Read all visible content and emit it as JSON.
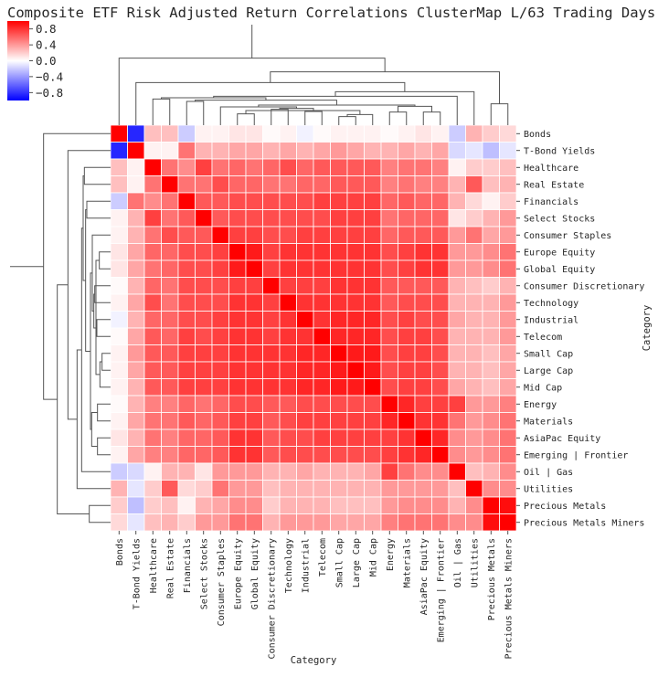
{
  "chart_data": {
    "type": "heatmap",
    "title": "Composite ETF Risk Adjusted Return Correlations ClusterMap L/63 Trading Days",
    "xlabel": "Category",
    "ylabel": "Category",
    "categories": [
      "Bonds",
      "T-Bond Yields",
      "Healthcare",
      "Real Estate",
      "Financials",
      "Select Stocks",
      "Consumer Staples",
      "Europe Equity",
      "Global Equity",
      "Consumer Discretionary",
      "Technology",
      "Industrial",
      "Telecom",
      "Small Cap",
      "Large Cap",
      "Mid Cap",
      "Energy",
      "Materials",
      "AsiaPac Equity",
      "Emerging | Frontier",
      "Oil | Gas",
      "Utilities",
      "Precious Metals",
      "Precious Metals Miners"
    ],
    "colorbar": {
      "range": [
        -1.0,
        1.0
      ],
      "ticks": [
        -0.8,
        -0.4,
        0.0,
        0.4,
        0.8
      ],
      "tick_labels": [
        "−0.8",
        "−0.4",
        "0.0",
        "0.4",
        "0.8"
      ],
      "colormap": "bwr"
    },
    "colors": {
      "negative": "#0000ff",
      "zero": "#ffffff",
      "positive": "#ff0000",
      "dendrogram": "#555555",
      "grid": "#ffffff"
    },
    "values": [
      [
        1.0,
        -0.85,
        0.25,
        0.25,
        -0.2,
        0.05,
        0.05,
        0.1,
        0.1,
        0.02,
        0.05,
        -0.05,
        0.02,
        0.05,
        0.05,
        0.05,
        0.02,
        0.05,
        0.1,
        0.05,
        -0.2,
        0.3,
        0.2,
        0.15
      ],
      [
        -0.85,
        1.0,
        0.05,
        0.05,
        0.55,
        0.3,
        0.3,
        0.35,
        0.35,
        0.3,
        0.35,
        0.3,
        0.35,
        0.4,
        0.35,
        0.3,
        0.3,
        0.35,
        0.3,
        0.35,
        -0.15,
        -0.1,
        -0.25,
        -0.1
      ],
      [
        0.25,
        0.05,
        1.0,
        0.55,
        0.45,
        0.75,
        0.55,
        0.6,
        0.55,
        0.6,
        0.7,
        0.6,
        0.65,
        0.65,
        0.65,
        0.65,
        0.5,
        0.55,
        0.55,
        0.5,
        0.05,
        0.2,
        0.2,
        0.25
      ],
      [
        0.25,
        0.05,
        0.55,
        1.0,
        0.55,
        0.55,
        0.7,
        0.6,
        0.6,
        0.55,
        0.55,
        0.6,
        0.6,
        0.65,
        0.65,
        0.65,
        0.5,
        0.55,
        0.5,
        0.5,
        0.3,
        0.65,
        0.25,
        0.3
      ],
      [
        -0.2,
        0.55,
        0.45,
        0.55,
        1.0,
        0.65,
        0.65,
        0.7,
        0.7,
        0.7,
        0.7,
        0.7,
        0.75,
        0.75,
        0.75,
        0.75,
        0.6,
        0.65,
        0.6,
        0.6,
        0.3,
        0.15,
        0.05,
        0.2
      ],
      [
        0.05,
        0.3,
        0.75,
        0.55,
        0.65,
        1.0,
        0.65,
        0.7,
        0.7,
        0.7,
        0.7,
        0.7,
        0.7,
        0.75,
        0.75,
        0.75,
        0.55,
        0.6,
        0.6,
        0.6,
        0.1,
        0.2,
        0.3,
        0.4
      ],
      [
        0.05,
        0.3,
        0.55,
        0.7,
        0.65,
        0.65,
        1.0,
        0.75,
        0.75,
        0.7,
        0.7,
        0.75,
        0.75,
        0.75,
        0.75,
        0.75,
        0.6,
        0.65,
        0.65,
        0.65,
        0.4,
        0.55,
        0.35,
        0.4
      ],
      [
        0.1,
        0.35,
        0.6,
        0.6,
        0.7,
        0.7,
        0.75,
        1.0,
        0.9,
        0.75,
        0.8,
        0.8,
        0.8,
        0.8,
        0.8,
        0.8,
        0.7,
        0.75,
        0.8,
        0.8,
        0.4,
        0.4,
        0.45,
        0.55
      ],
      [
        0.1,
        0.35,
        0.55,
        0.6,
        0.7,
        0.7,
        0.75,
        0.9,
        1.0,
        0.75,
        0.8,
        0.8,
        0.8,
        0.8,
        0.8,
        0.8,
        0.7,
        0.75,
        0.8,
        0.8,
        0.4,
        0.4,
        0.45,
        0.55
      ],
      [
        0.02,
        0.3,
        0.6,
        0.55,
        0.7,
        0.7,
        0.7,
        0.75,
        0.75,
        1.0,
        0.75,
        0.75,
        0.75,
        0.8,
        0.8,
        0.8,
        0.65,
        0.65,
        0.65,
        0.65,
        0.3,
        0.25,
        0.2,
        0.3
      ],
      [
        0.05,
        0.35,
        0.7,
        0.55,
        0.7,
        0.7,
        0.7,
        0.8,
        0.8,
        0.75,
        1.0,
        0.8,
        0.8,
        0.8,
        0.8,
        0.8,
        0.65,
        0.7,
        0.7,
        0.7,
        0.3,
        0.3,
        0.3,
        0.4
      ],
      [
        -0.05,
        0.3,
        0.6,
        0.6,
        0.7,
        0.7,
        0.75,
        0.8,
        0.8,
        0.75,
        0.8,
        1.0,
        0.8,
        0.85,
        0.85,
        0.85,
        0.7,
        0.75,
        0.7,
        0.7,
        0.35,
        0.3,
        0.3,
        0.4
      ],
      [
        0.02,
        0.35,
        0.65,
        0.6,
        0.75,
        0.7,
        0.75,
        0.8,
        0.8,
        0.75,
        0.8,
        0.8,
        1.0,
        0.85,
        0.85,
        0.85,
        0.7,
        0.75,
        0.75,
        0.7,
        0.3,
        0.3,
        0.3,
        0.4
      ],
      [
        0.05,
        0.4,
        0.65,
        0.65,
        0.75,
        0.75,
        0.75,
        0.8,
        0.8,
        0.8,
        0.8,
        0.85,
        0.85,
        1.0,
        0.9,
        0.9,
        0.7,
        0.75,
        0.75,
        0.7,
        0.3,
        0.3,
        0.25,
        0.35
      ],
      [
        0.05,
        0.35,
        0.65,
        0.65,
        0.75,
        0.75,
        0.75,
        0.8,
        0.8,
        0.8,
        0.8,
        0.85,
        0.85,
        0.9,
        1.0,
        0.9,
        0.7,
        0.75,
        0.75,
        0.7,
        0.3,
        0.3,
        0.25,
        0.35
      ],
      [
        0.05,
        0.3,
        0.65,
        0.65,
        0.75,
        0.75,
        0.75,
        0.8,
        0.8,
        0.8,
        0.8,
        0.85,
        0.85,
        0.9,
        0.9,
        1.0,
        0.7,
        0.75,
        0.75,
        0.7,
        0.35,
        0.3,
        0.25,
        0.35
      ],
      [
        0.02,
        0.3,
        0.5,
        0.5,
        0.6,
        0.55,
        0.6,
        0.7,
        0.7,
        0.65,
        0.65,
        0.7,
        0.7,
        0.7,
        0.7,
        0.7,
        1.0,
        0.85,
        0.75,
        0.75,
        0.75,
        0.4,
        0.4,
        0.5
      ],
      [
        0.05,
        0.35,
        0.55,
        0.55,
        0.65,
        0.6,
        0.65,
        0.75,
        0.75,
        0.65,
        0.7,
        0.75,
        0.75,
        0.75,
        0.75,
        0.75,
        0.85,
        1.0,
        0.8,
        0.8,
        0.55,
        0.4,
        0.45,
        0.55
      ],
      [
        0.1,
        0.3,
        0.55,
        0.5,
        0.6,
        0.6,
        0.65,
        0.8,
        0.8,
        0.65,
        0.7,
        0.7,
        0.75,
        0.75,
        0.75,
        0.75,
        0.75,
        0.8,
        1.0,
        0.85,
        0.45,
        0.4,
        0.45,
        0.55
      ],
      [
        0.05,
        0.35,
        0.5,
        0.5,
        0.6,
        0.6,
        0.65,
        0.8,
        0.8,
        0.65,
        0.7,
        0.7,
        0.7,
        0.7,
        0.7,
        0.7,
        0.75,
        0.8,
        0.85,
        1.0,
        0.45,
        0.4,
        0.45,
        0.55
      ],
      [
        -0.2,
        -0.15,
        0.05,
        0.3,
        0.3,
        0.1,
        0.4,
        0.4,
        0.4,
        0.3,
        0.3,
        0.35,
        0.3,
        0.3,
        0.3,
        0.35,
        0.75,
        0.55,
        0.45,
        0.45,
        1.0,
        0.25,
        0.3,
        0.45
      ],
      [
        0.3,
        -0.1,
        0.2,
        0.65,
        0.15,
        0.2,
        0.55,
        0.4,
        0.4,
        0.25,
        0.3,
        0.3,
        0.3,
        0.3,
        0.3,
        0.3,
        0.4,
        0.4,
        0.4,
        0.4,
        0.25,
        1.0,
        0.45,
        0.45
      ],
      [
        0.2,
        -0.25,
        0.2,
        0.25,
        0.05,
        0.3,
        0.35,
        0.45,
        0.45,
        0.2,
        0.3,
        0.3,
        0.3,
        0.25,
        0.25,
        0.25,
        0.4,
        0.45,
        0.45,
        0.45,
        0.3,
        0.45,
        1.0,
        0.95
      ],
      [
        0.15,
        -0.1,
        0.25,
        0.3,
        0.2,
        0.4,
        0.4,
        0.55,
        0.55,
        0.3,
        0.4,
        0.4,
        0.4,
        0.35,
        0.35,
        0.35,
        0.5,
        0.55,
        0.55,
        0.55,
        0.45,
        0.45,
        0.95,
        1.0
      ]
    ],
    "dendrogram": {
      "leaf_order": [
        "Bonds",
        "T-Bond Yields",
        "Healthcare",
        "Real Estate",
        "Financials",
        "Select Stocks",
        "Consumer Staples",
        "Europe Equity",
        "Global Equity",
        "Consumer Discretionary",
        "Technology",
        "Industrial",
        "Telecom",
        "Small Cap",
        "Large Cap",
        "Mid Cap",
        "Energy",
        "Materials",
        "AsiaPac Equity",
        "Emerging | Frontier",
        "Oil | Gas",
        "Utilities",
        "Precious Metals",
        "Precious Metals Miners"
      ],
      "merges": [
        [
          13,
          14,
          0.28
        ],
        [
          24,
          15,
          0.35
        ],
        [
          7,
          8,
          0.37
        ],
        [
          16,
          17,
          0.43
        ],
        [
          18,
          19,
          0.43
        ],
        [
          11,
          12,
          0.45
        ],
        [
          26,
          25,
          0.48
        ],
        [
          9,
          10,
          0.52
        ],
        [
          31,
          29,
          0.55
        ],
        [
          32,
          6,
          0.6
        ],
        [
          27,
          28,
          0.62
        ],
        [
          33,
          34,
          0.66
        ],
        [
          22,
          23,
          0.7
        ],
        [
          4,
          5,
          0.78
        ],
        [
          35,
          37,
          0.82
        ],
        [
          2,
          3,
          0.86
        ],
        [
          38,
          39,
          0.9
        ],
        [
          40,
          20,
          0.95
        ],
        [
          41,
          21,
          1.1
        ],
        [
          1,
          42,
          1.4
        ],
        [
          43,
          36,
          1.75
        ],
        [
          0,
          44,
          2.2
        ],
        [
          45,
          46,
          3.3
        ]
      ]
    }
  }
}
